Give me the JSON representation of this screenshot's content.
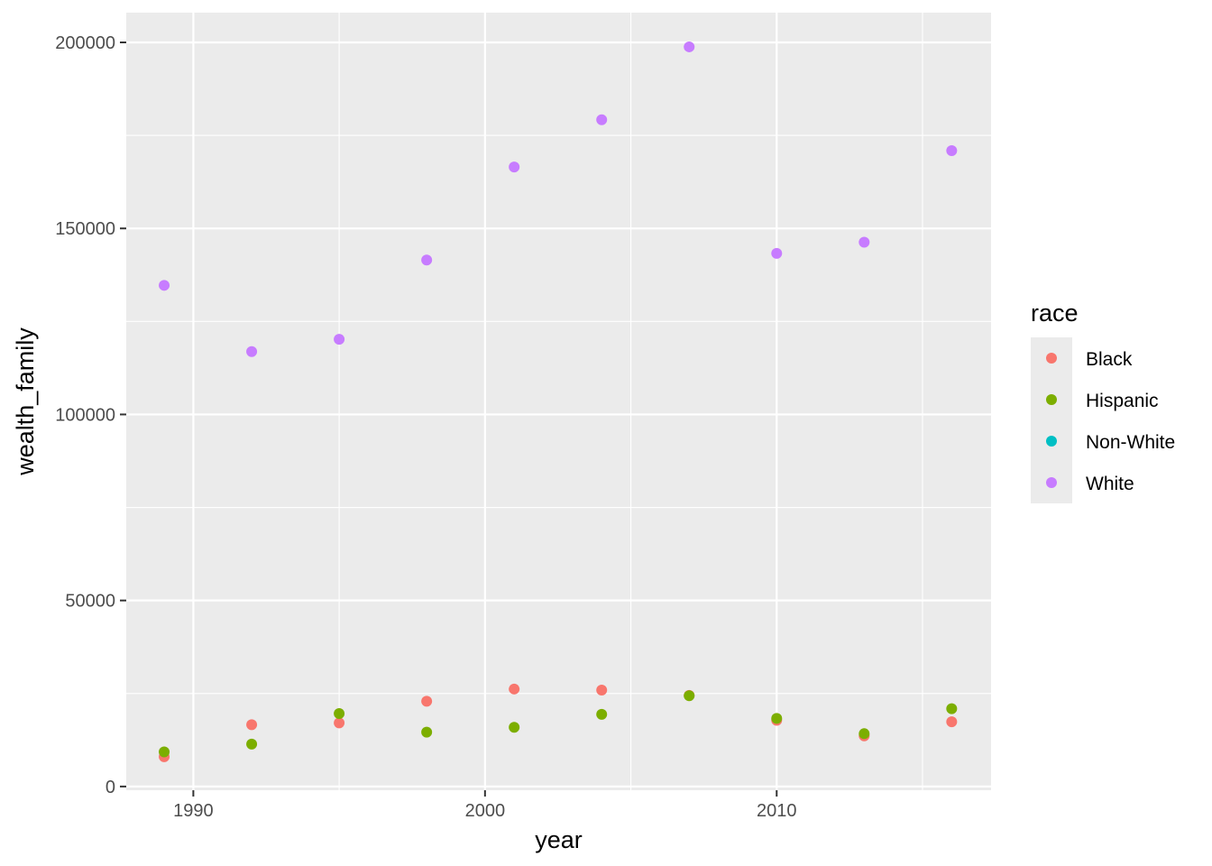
{
  "chart_data": {
    "type": "scatter",
    "title": "",
    "xlabel": "year",
    "ylabel": "wealth_family",
    "xlim": [
      1987.7,
      2017.35
    ],
    "ylim": [
      -1000,
      208000
    ],
    "x_ticks": [
      1990,
      2000,
      2010
    ],
    "x_tick_labels": [
      "1990",
      "2000",
      "2010"
    ],
    "y_ticks": [
      0,
      50000,
      100000,
      150000,
      200000
    ],
    "y_tick_labels": [
      "0",
      "50000",
      "100000",
      "150000",
      "200000"
    ],
    "grid": true,
    "legend": {
      "title": "race",
      "position": "right"
    },
    "series": [
      {
        "name": "Black",
        "color": "#F8766D",
        "x": [
          1989,
          1992,
          1995,
          1998,
          2001,
          2004,
          2007,
          2010,
          2013,
          2016
        ],
        "y": [
          8000,
          16600,
          17100,
          22900,
          26200,
          25900,
          24500,
          17800,
          13600,
          17400
        ]
      },
      {
        "name": "Hispanic",
        "color": "#7CAE00",
        "x": [
          1989,
          1992,
          1995,
          1998,
          2001,
          2004,
          2007,
          2010,
          2013,
          2016
        ],
        "y": [
          9300,
          11400,
          19600,
          14600,
          15900,
          19400,
          24400,
          18300,
          14200,
          20900
        ]
      },
      {
        "name": "Non-White",
        "color": "#00BFC4",
        "x": [],
        "y": []
      },
      {
        "name": "White",
        "color": "#C77CFF",
        "x": [
          1989,
          1992,
          1995,
          1998,
          2001,
          2004,
          2007,
          2010,
          2013,
          2016
        ],
        "y": [
          134700,
          116900,
          120200,
          141500,
          166500,
          179200,
          198800,
          143300,
          146300,
          170900
        ]
      }
    ]
  }
}
